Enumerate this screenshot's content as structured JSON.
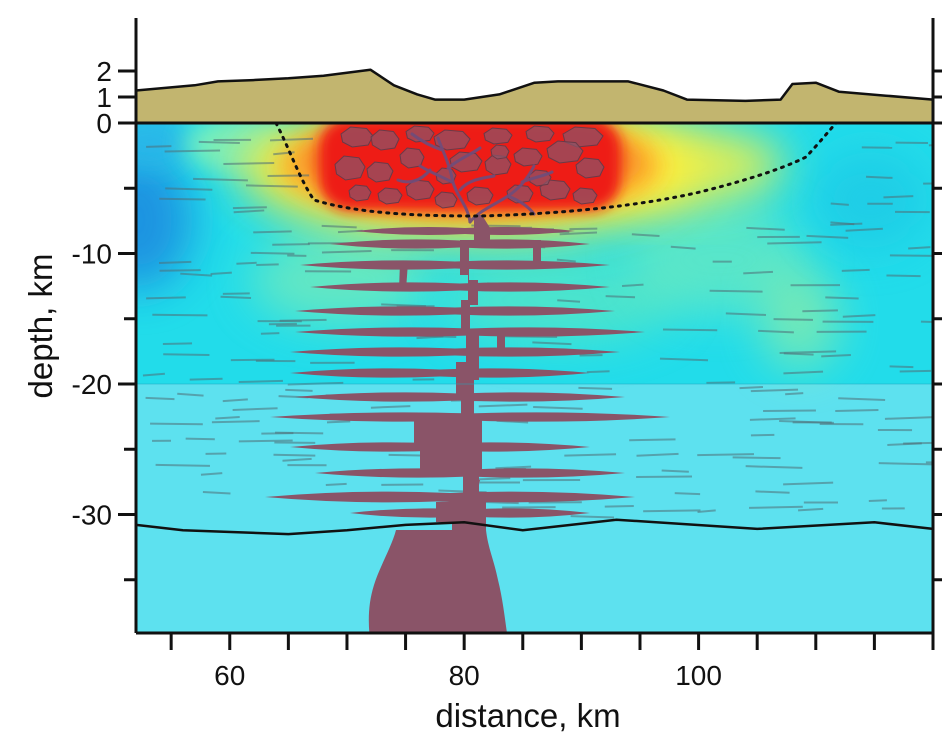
{
  "chart_data": {
    "type": "cross-section",
    "xlabel": "distance, km",
    "ylabel": "depth, km",
    "x_ticks": [
      60,
      80,
      100
    ],
    "y_ticks": [
      2,
      1,
      0,
      -10,
      -20,
      -30
    ],
    "x_range": [
      52,
      120
    ],
    "y_range": [
      -39,
      2
    ],
    "topography_km": [
      [
        52,
        1.25
      ],
      [
        57,
        1.45
      ],
      [
        59,
        1.6
      ],
      [
        62,
        1.65
      ],
      [
        65,
        1.72
      ],
      [
        68,
        1.82
      ],
      [
        72,
        2.05
      ],
      [
        74,
        1.45
      ],
      [
        76,
        1.1
      ],
      [
        77.5,
        0.9
      ],
      [
        80,
        0.9
      ],
      [
        83,
        1.1
      ],
      [
        86,
        1.55
      ],
      [
        88,
        1.6
      ],
      [
        92,
        1.6
      ],
      [
        94,
        1.6
      ],
      [
        97,
        1.25
      ],
      [
        99,
        0.9
      ],
      [
        104,
        0.85
      ],
      [
        107,
        0.9
      ],
      [
        108,
        1.5
      ],
      [
        110,
        1.55
      ],
      [
        112,
        1.2
      ],
      [
        116,
        1.05
      ],
      [
        120,
        0.9
      ]
    ],
    "moho_depth_km": [
      [
        52,
        -30.8
      ],
      [
        56,
        -31.2
      ],
      [
        65,
        -31.5
      ],
      [
        70,
        -31.2
      ],
      [
        75,
        -30.8
      ],
      [
        80,
        -30.6
      ],
      [
        85,
        -31.2
      ],
      [
        93,
        -30.4
      ],
      [
        105,
        -31.1
      ],
      [
        115,
        -30.6
      ],
      [
        120,
        -31.1
      ]
    ],
    "layer_boundary_depth_km": -20,
    "colors": {
      "topography": "#c2b56f",
      "upper_crust": "#22dcea",
      "lower_crust": "#5de1ef",
      "melt": "#8a5468",
      "anomaly_hot": "#ee1c16",
      "outline": "#111111"
    }
  }
}
